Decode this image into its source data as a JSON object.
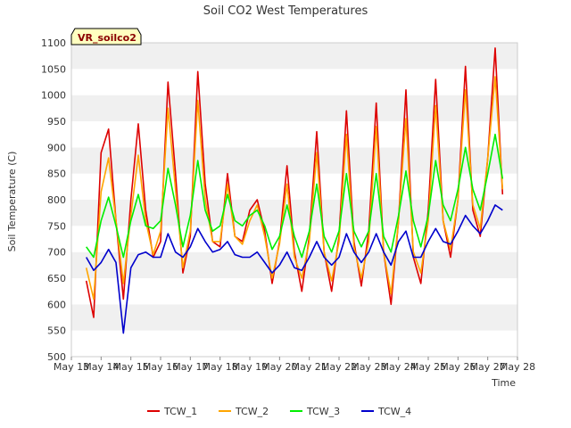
{
  "chart_data": {
    "type": "line",
    "title": "Soil CO2 West Temperatures",
    "xlabel": "Time",
    "ylabel": "Soil Temperature (C)",
    "badge": "VR_soilco2",
    "x_ticks": [
      "May 13",
      "May 14",
      "May 15",
      "May 16",
      "May 17",
      "May 18",
      "May 19",
      "May 20",
      "May 21",
      "May 22",
      "May 23",
      "May 24",
      "May 25",
      "May 26",
      "May 27",
      "May 28"
    ],
    "xlim": [
      "May 13",
      "May 28"
    ],
    "ylim": [
      500,
      1100
    ],
    "y_ticks": [
      500,
      550,
      600,
      650,
      700,
      750,
      800,
      850,
      900,
      950,
      1000,
      1050,
      1100
    ],
    "grid": "horizontal alternating bands",
    "legend": "bottom-center",
    "x": [
      "May 13 12:00",
      "May 13 18:00",
      "May 14 00:00",
      "May 14 06:00",
      "May 14 12:00",
      "May 14 18:00",
      "May 15 00:00",
      "May 15 06:00",
      "May 15 12:00",
      "May 15 18:00",
      "May 16 00:00",
      "May 16 06:00",
      "May 16 12:00",
      "May 16 18:00",
      "May 17 00:00",
      "May 17 06:00",
      "May 17 12:00",
      "May 17 18:00",
      "May 18 00:00",
      "May 18 06:00",
      "May 18 12:00",
      "May 18 18:00",
      "May 19 00:00",
      "May 19 06:00",
      "May 19 12:00",
      "May 19 18:00",
      "May 20 00:00",
      "May 20 06:00",
      "May 20 12:00",
      "May 20 18:00",
      "May 21 00:00",
      "May 21 06:00",
      "May 21 12:00",
      "May 21 18:00",
      "May 22 00:00",
      "May 22 06:00",
      "May 22 12:00",
      "May 22 18:00",
      "May 23 00:00",
      "May 23 06:00",
      "May 23 12:00",
      "May 23 18:00",
      "May 24 00:00",
      "May 24 06:00",
      "May 24 12:00",
      "May 24 18:00",
      "May 25 00:00",
      "May 25 06:00",
      "May 25 12:00",
      "May 25 18:00",
      "May 26 00:00",
      "May 26 06:00",
      "May 26 12:00",
      "May 26 18:00",
      "May 27 00:00",
      "May 27 06:00",
      "May 27 12:00"
    ],
    "series": [
      {
        "name": "TCW_1",
        "color": "#dd0000",
        "values": [
          645,
          575,
          890,
          935,
          760,
          610,
          800,
          945,
          780,
          690,
          720,
          1025,
          850,
          660,
          730,
          1045,
          830,
          720,
          710,
          850,
          730,
          720,
          780,
          800,
          740,
          640,
          720,
          865,
          700,
          625,
          730,
          930,
          700,
          625,
          730,
          970,
          720,
          635,
          740,
          985,
          700,
          600,
          760,
          1010,
          690,
          640,
          780,
          1030,
          760,
          690,
          800,
          1055,
          780,
          730,
          880,
          1090,
          810
        ]
      },
      {
        "name": "TCW_2",
        "color": "#ffa500",
        "values": [
          670,
          610,
          815,
          880,
          760,
          640,
          770,
          885,
          760,
          695,
          740,
          975,
          820,
          670,
          740,
          990,
          800,
          720,
          720,
          830,
          730,
          715,
          760,
          790,
          730,
          650,
          715,
          830,
          690,
          650,
          720,
          890,
          700,
          645,
          720,
          925,
          710,
          650,
          720,
          940,
          700,
          620,
          760,
          955,
          700,
          660,
          760,
          980,
          760,
          705,
          800,
          1010,
          790,
          745,
          880,
          1035,
          820
        ]
      },
      {
        "name": "TCW_3",
        "color": "#00ee00",
        "values": [
          710,
          690,
          760,
          805,
          750,
          690,
          760,
          810,
          750,
          745,
          760,
          860,
          790,
          710,
          770,
          875,
          780,
          740,
          750,
          810,
          760,
          750,
          770,
          780,
          750,
          705,
          730,
          790,
          730,
          690,
          740,
          830,
          730,
          700,
          740,
          850,
          740,
          710,
          740,
          850,
          730,
          700,
          770,
          855,
          760,
          710,
          770,
          875,
          790,
          760,
          820,
          900,
          820,
          780,
          850,
          925,
          840
        ]
      },
      {
        "name": "TCW_4",
        "color": "#0000cc",
        "values": [
          690,
          665,
          680,
          705,
          680,
          545,
          670,
          695,
          700,
          690,
          690,
          735,
          700,
          690,
          710,
          745,
          720,
          700,
          705,
          720,
          695,
          690,
          690,
          700,
          680,
          660,
          675,
          700,
          670,
          665,
          690,
          720,
          690,
          675,
          690,
          735,
          700,
          680,
          700,
          735,
          700,
          675,
          720,
          740,
          690,
          690,
          720,
          745,
          720,
          715,
          740,
          770,
          750,
          735,
          760,
          790,
          780
        ]
      }
    ]
  }
}
